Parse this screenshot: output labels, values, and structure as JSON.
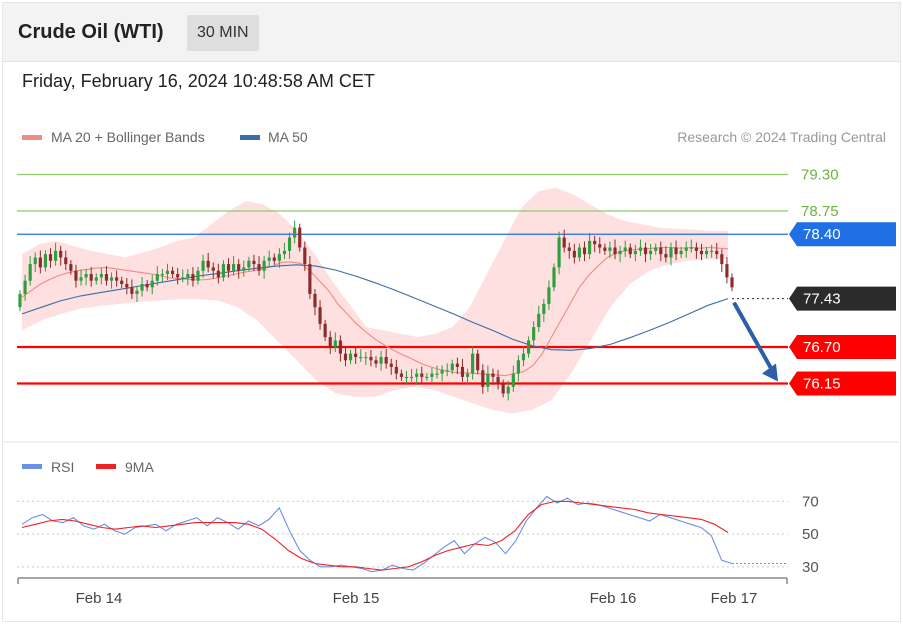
{
  "header": {
    "title": "Crude Oil (WTI)",
    "timeframe": "30 MIN",
    "datetime": "Friday, February 16, 2024 10:48:58 AM CET"
  },
  "colors": {
    "ma20": "#f28b82",
    "ma50": "#3a6ea5",
    "bollinger": "#ffd6d6",
    "bull": "#2e9e3e",
    "bear": "#8b2b2b",
    "resistance_green": "#8fc96a",
    "pivot_blue": "#1f6fe5",
    "support_red": "#ff0000",
    "last_price": "#2b2b2b",
    "rsi": "#6b8ee8",
    "rsi_ma": "#ee2222",
    "arrow": "#2f5ea8"
  },
  "chart_data": [
    {
      "type": "candlestick",
      "legend": [
        "MA 20 + Bollinger Bands",
        "MA 50"
      ],
      "credit": "Research © 2024 Trading Central",
      "ylim": [
        75.6,
        79.7
      ],
      "grid": false,
      "legend_position": "top-left",
      "x_ticks": [
        "Feb 14",
        "Feb 15",
        "Feb 16",
        "Feb 17"
      ],
      "levels": [
        {
          "value": 79.3,
          "label": "79.30",
          "style": "resistance"
        },
        {
          "value": 78.75,
          "label": "78.75",
          "style": "resistance"
        },
        {
          "value": 78.4,
          "label": "78.40",
          "style": "pivot"
        },
        {
          "value": 77.43,
          "label": "77.43",
          "style": "last"
        },
        {
          "value": 76.7,
          "label": "76.70",
          "style": "support"
        },
        {
          "value": 76.15,
          "label": "76.15",
          "style": "support"
        }
      ],
      "close_series": [
        77.5,
        77.7,
        77.95,
        78.05,
        77.9,
        78.1,
        78.0,
        78.15,
        78.05,
        77.95,
        77.85,
        77.7,
        77.75,
        77.8,
        77.7,
        77.75,
        77.8,
        77.7,
        77.75,
        77.7,
        77.65,
        77.6,
        77.5,
        77.55,
        77.65,
        77.6,
        77.7,
        77.8,
        77.8,
        77.85,
        77.8,
        77.75,
        77.75,
        77.8,
        77.7,
        77.85,
        78.0,
        77.9,
        77.85,
        77.75,
        77.95,
        77.85,
        77.95,
        77.85,
        77.9,
        78.0,
        77.95,
        77.85,
        78.0,
        78.05,
        78.0,
        78.1,
        78.15,
        78.35,
        78.5,
        78.2,
        77.95,
        77.5,
        77.3,
        77.05,
        76.85,
        76.7,
        76.8,
        76.6,
        76.5,
        76.6,
        76.55,
        76.55,
        76.55,
        76.5,
        76.45,
        76.55,
        76.45,
        76.4,
        76.3,
        76.25,
        76.25,
        76.25,
        76.3,
        76.25,
        76.25,
        76.3,
        76.3,
        76.35,
        76.35,
        76.45,
        76.4,
        76.25,
        76.3,
        76.6,
        76.35,
        76.1,
        76.3,
        76.25,
        76.15,
        76.0,
        76.1,
        76.3,
        76.5,
        76.6,
        76.8,
        77.0,
        77.2,
        77.35,
        77.6,
        77.9,
        78.35,
        78.2,
        78.15,
        78.05,
        78.2,
        78.1,
        78.3,
        78.25,
        78.2,
        78.15,
        78.2,
        78.1,
        78.15,
        78.2,
        78.1,
        78.15,
        78.2,
        78.1,
        78.15,
        78.2,
        78.1,
        78.05,
        78.2,
        78.1,
        78.15,
        78.2,
        78.2,
        78.15,
        78.1,
        78.15,
        78.15,
        78.1,
        77.95,
        77.75,
        77.6
      ],
      "ma20": [
        77.45,
        77.55,
        77.65,
        77.72,
        77.78,
        77.82,
        77.85,
        77.87,
        77.89,
        77.9,
        77.88,
        77.86,
        77.84,
        77.82,
        77.8,
        77.77,
        77.74,
        77.73,
        77.72,
        77.71,
        77.72,
        77.74,
        77.77,
        77.8,
        77.83,
        77.85,
        77.88,
        77.92,
        77.98,
        77.98,
        77.96,
        77.85,
        77.7,
        77.55,
        77.35,
        77.2,
        77.05,
        76.93,
        76.82,
        76.73,
        76.65,
        76.58,
        76.52,
        76.45,
        76.4,
        76.36,
        76.33,
        76.31,
        76.31,
        76.3,
        76.29,
        76.28,
        76.27,
        76.3,
        76.33,
        76.42,
        76.6,
        76.85,
        77.1,
        77.35,
        77.6,
        77.78,
        77.92,
        78.05,
        78.12,
        78.15,
        78.17,
        78.18,
        78.19,
        78.2,
        78.2,
        78.19,
        78.2,
        78.19,
        78.2,
        78.19,
        78.18
      ],
      "ma50": [
        77.2,
        77.3,
        77.4,
        77.47,
        77.52,
        77.57,
        77.62,
        77.67,
        77.72,
        77.77,
        77.81,
        77.85,
        77.89,
        77.92,
        77.94,
        77.92,
        77.86,
        77.77,
        77.67,
        77.56,
        77.44,
        77.32,
        77.2,
        77.07,
        76.95,
        76.82,
        76.72,
        76.66,
        76.65,
        76.68,
        76.74,
        76.84,
        76.95,
        77.07,
        77.2,
        77.33,
        77.43
      ],
      "bollinger_upper": [
        78.1,
        78.25,
        78.3,
        78.22,
        78.15,
        78.1,
        78.05,
        78.12,
        78.2,
        78.3,
        78.35,
        78.55,
        78.75,
        78.9,
        78.85,
        78.7,
        78.45,
        78.1,
        77.7,
        77.35,
        77.0,
        76.95,
        76.9,
        76.85,
        76.9,
        77.0,
        77.3,
        77.8,
        78.3,
        78.8,
        79.05,
        79.1,
        79.0,
        78.85,
        78.7,
        78.6,
        78.55,
        78.5,
        78.48,
        78.47,
        78.45,
        78.45
      ],
      "bollinger_lower": [
        76.95,
        77.1,
        77.2,
        77.28,
        77.32,
        77.35,
        77.38,
        77.4,
        77.42,
        77.42,
        77.4,
        77.3,
        77.1,
        76.8,
        76.5,
        76.2,
        76.0,
        75.95,
        75.95,
        76.05,
        76.1,
        76.05,
        75.95,
        75.85,
        75.75,
        75.7,
        75.75,
        75.9,
        76.3,
        76.8,
        77.3,
        77.65,
        77.85,
        77.95,
        78.0,
        78.02,
        78.03
      ]
    },
    {
      "type": "line",
      "legend": [
        "RSI",
        "9MA"
      ],
      "ylim": [
        25,
        80
      ],
      "y_ticks": [
        70,
        50,
        30
      ],
      "series": [
        {
          "name": "RSI",
          "values": [
            56,
            60,
            62,
            58,
            57,
            60,
            55,
            53,
            56,
            52,
            50,
            54,
            55,
            56,
            52,
            56,
            58,
            60,
            55,
            60,
            57,
            53,
            58,
            55,
            59,
            66,
            52,
            40,
            34,
            30,
            30,
            31,
            30,
            29,
            27,
            28,
            31,
            29,
            28,
            32,
            37,
            42,
            46,
            38,
            44,
            48,
            45,
            38,
            46,
            58,
            66,
            73,
            69,
            72,
            68,
            69,
            68,
            66,
            64,
            62,
            60,
            58,
            62,
            60,
            58,
            56,
            54,
            49,
            34,
            32
          ]
        },
        {
          "name": "9MA",
          "values": [
            54,
            56,
            58,
            59,
            58,
            56,
            54,
            53,
            54,
            55,
            54,
            55,
            56,
            57,
            57,
            57,
            57,
            56,
            53,
            47,
            40,
            35,
            32,
            31,
            30,
            30,
            29,
            28,
            29,
            30,
            33,
            37,
            40,
            42,
            44,
            43,
            46,
            52,
            62,
            68,
            70,
            70,
            69,
            68,
            67,
            66,
            65,
            63,
            62,
            61,
            60,
            59,
            56,
            51
          ]
        }
      ]
    }
  ]
}
